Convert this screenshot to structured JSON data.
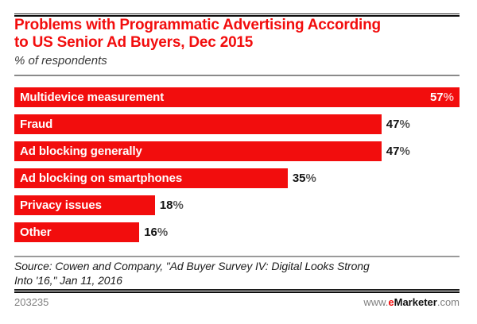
{
  "header": {
    "title_lines": [
      "Problems with Programmatic Advertising According",
      "to US Senior Ad Buyers, Dec 2015"
    ],
    "subtitle": "% of respondents"
  },
  "chart_data": {
    "type": "bar",
    "orientation": "horizontal",
    "title": "Problems with Programmatic Advertising According to US Senior Ad Buyers, Dec 2015",
    "subtitle": "% of respondents",
    "categories": [
      "Multidevice measurement",
      "Fraud",
      "Ad blocking generally",
      "Ad blocking on smartphones",
      "Privacy issues",
      "Other"
    ],
    "values": [
      57,
      47,
      47,
      35,
      18,
      16
    ],
    "unit": "%",
    "xlim": [
      0,
      57
    ],
    "grid": false,
    "legend": "none",
    "bar_color": "#f20d0d",
    "value_label_positions": [
      "inside",
      "outside",
      "outside",
      "outside",
      "outside",
      "outside"
    ]
  },
  "source": {
    "lines": [
      "Source: Cowen and Company, \"Ad Buyer Survey IV: Digital Looks Strong",
      "Into '16,\" Jan 11, 2016"
    ]
  },
  "footer": {
    "chart_id": "203235",
    "website": {
      "prefix": "www.",
      "brand_first_letter": "e",
      "brand_rest": "Marketer",
      "suffix": ".com",
      "full": "www.eMarketer.com"
    }
  },
  "colors": {
    "accent_red": "#f20d0d",
    "rule_black": "#111111",
    "rule_gray": "#8a8a8a",
    "value_text": "#141414"
  }
}
